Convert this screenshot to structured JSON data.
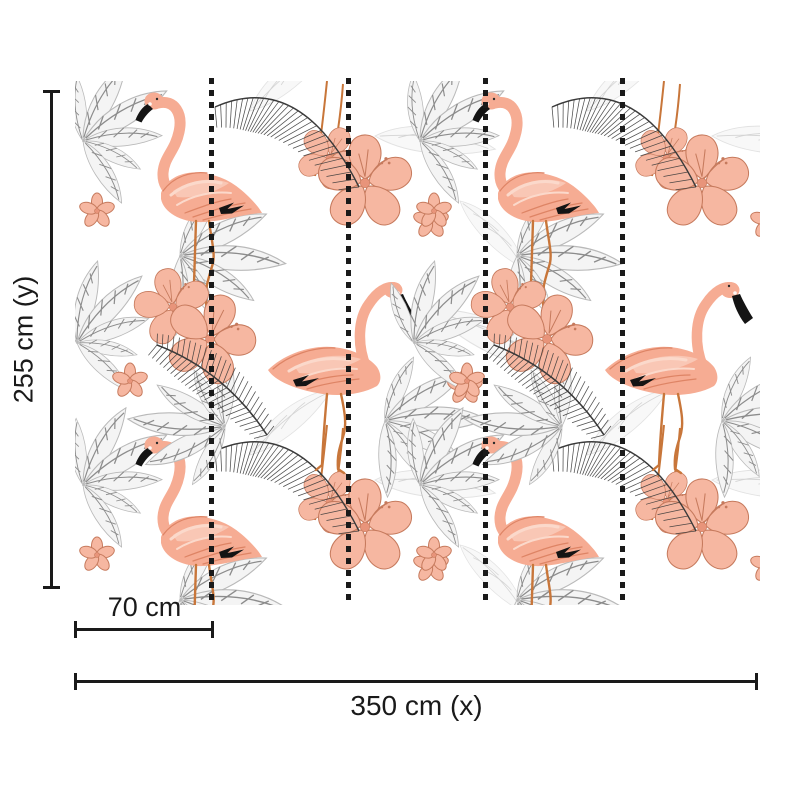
{
  "diagram": {
    "title": "flamingo wall mural size diagram",
    "height_label": "255 cm (y)",
    "panel_width_label": "70 cm",
    "total_width_label": "350 cm (x)",
    "panel_count": 5,
    "divider_style": "dotted",
    "line_color": "#1a1a1a"
  },
  "pattern": {
    "description": "tropical wallpaper: pink flamingos, palm fronds, hibiscus flowers, sketched gray leaves and soft white feathers on a white background",
    "colors": {
      "flamingo_body": "#F6AC93",
      "flamingo_highlight": "#FBD9CB",
      "flamingo_shadow": "#DE8465",
      "beak": "#141414",
      "legs": "#C8763A",
      "flower": "#F6B7A1",
      "flower_line": "#C67A5D",
      "flower_center": "#E8947A",
      "leaf_fill": "#F4F4F4",
      "leaf_line": "#8C8C8C",
      "feather": "#F8F8F8",
      "frond": "#3A3A3A",
      "background": "#FFFFFF"
    }
  }
}
